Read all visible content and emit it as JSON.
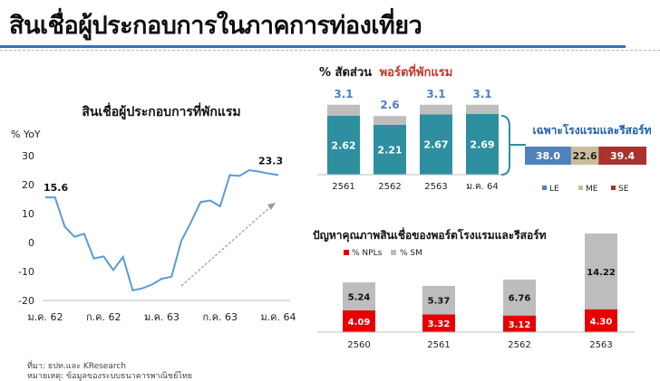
{
  "page": {
    "title": "สินเชื่อผู้ประกอบการในภาคการท่องเที่ยว",
    "source": "ที่มา: ธปท.และ KResearch",
    "note": "หมายเหตุ: ข้อมูลของระบบธนาคารพาณิชย์ไทย",
    "colors": {
      "title_rule": "#3b6fb6",
      "teal": "#2e8fa1",
      "grey": "#bdbdbd",
      "red": "#e60000",
      "sme": "#c9bd9b",
      "se": "#a8322d",
      "line": "#5b9bd5"
    }
  },
  "chart_data": [
    {
      "id": "yoy-line",
      "type": "line",
      "title": "สินเชื่อผู้ประกอบการที่พักแรม",
      "ylabel": "% YoY",
      "ylim": [
        -20,
        30
      ],
      "yticks": [
        "30",
        "20",
        "10",
        "0",
        "-10",
        "-20"
      ],
      "xtick_labels": [
        "ม.ค. 62",
        "ก.ค. 62",
        "ม.ค. 63",
        "ก.ค. 63",
        "ม.ค. 64"
      ],
      "x": [
        "ม.ค. 62",
        "ก.พ. 62",
        "มี.ค. 62",
        "เม.ย. 62",
        "พ.ค. 62",
        "มิ.ย. 62",
        "ก.ค. 62",
        "ส.ค. 62",
        "ก.ย. 62",
        "ต.ค. 62",
        "พ.ย. 62",
        "ธ.ค. 62",
        "ม.ค. 63",
        "ก.พ. 63",
        "มี.ค. 63",
        "เม.ย. 63",
        "พ.ค. 63",
        "มิ.ย. 63",
        "ก.ค. 63",
        "ส.ค. 63",
        "ก.ย. 63",
        "ต.ค. 63",
        "พ.ย. 63",
        "ธ.ค. 63",
        "ม.ค. 64"
      ],
      "values": [
        15.6,
        15.6,
        5.5,
        2.0,
        3.0,
        -5.5,
        -4.8,
        -9.5,
        -5.0,
        -16.5,
        -15.8,
        -14.5,
        -12.5,
        -11.8,
        0.5,
        7.0,
        14.0,
        14.5,
        12.5,
        23.3,
        23.0,
        25.0,
        24.5,
        23.8,
        23.3
      ],
      "data_labels": {
        "start": "15.6",
        "end": "23.3"
      },
      "grid": false
    },
    {
      "id": "portfolio-share",
      "type": "bar",
      "stacked": true,
      "title_prefix": "% สัดส่วน",
      "title_highlight": "พอร์ตที่พักแรม",
      "categories": [
        "2561",
        "2562",
        "2563",
        "ม.ค. 64"
      ],
      "series": [
        {
          "values": [
            2.62,
            2.21,
            2.67,
            2.69
          ],
          "color": "#2e8fa1"
        },
        {
          "values": [
            0.48,
            0.39,
            0.43,
            0.41
          ],
          "color": "#bdbdbd"
        }
      ],
      "totals": [
        3.1,
        2.6,
        3.1,
        3.1
      ],
      "segment_labels": [
        "2.62",
        "2.21",
        "2.67",
        "2.69"
      ],
      "total_labels": [
        "3.1",
        "2.6",
        "3.1",
        "3.1"
      ]
    },
    {
      "id": "hotel-segment",
      "type": "bar",
      "orientation": "horizontal",
      "stacked": true,
      "title": "เฉพาะโรงแรมและรีสอร์ท",
      "categories": [
        "LE",
        "ME",
        "SE"
      ],
      "values": [
        38.0,
        22.6,
        39.4
      ],
      "labels": [
        "38.0",
        "22.6",
        "39.4"
      ],
      "colors": [
        "#4f81bd",
        "#c9bd9b",
        "#a8322d"
      ],
      "legend": [
        "LE",
        "ME",
        "SE"
      ]
    },
    {
      "id": "asset-quality",
      "type": "bar",
      "stacked": true,
      "title": "ปัญหาคุณภาพสินเชื่อของพอร์ตโรงแรมและรีสอร์ท",
      "categories": [
        "2560",
        "2561",
        "2562",
        "2563"
      ],
      "series": [
        {
          "name": "% NPLs",
          "values": [
            4.09,
            3.32,
            3.12,
            4.3
          ],
          "labels": [
            "4.09",
            "3.32",
            "3.12",
            "4.30"
          ],
          "color": "#e60000"
        },
        {
          "name": "% SM",
          "values": [
            5.24,
            5.37,
            6.76,
            14.22
          ],
          "labels": [
            "5.24",
            "5.37",
            "6.76",
            "14.22"
          ],
          "color": "#bdbdbd"
        }
      ],
      "legend_position": "top-left"
    }
  ]
}
